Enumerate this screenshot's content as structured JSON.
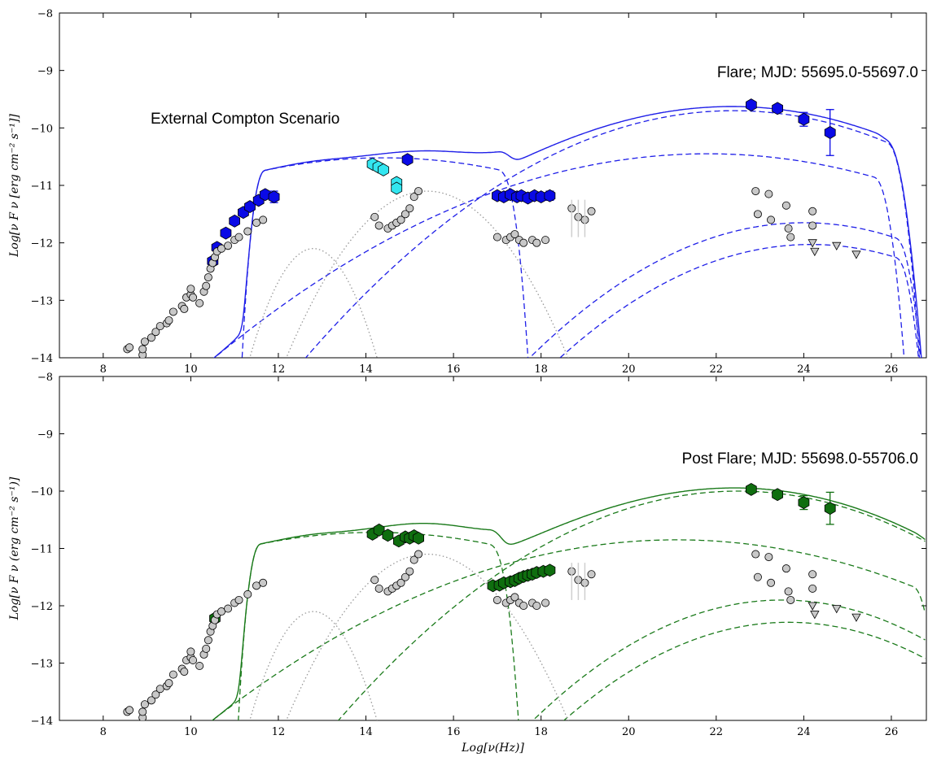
{
  "chart_data": [
    {
      "type": "scatter",
      "panel": "top",
      "annotations": [
        "Flare; MJD: 55695.0-55697.0",
        "External Compton Scenario"
      ],
      "ylabel": "Log[ν F ν [erg cm⁻² s⁻¹]]",
      "xlabel": "",
      "xlim": [
        7,
        26.8
      ],
      "ylim": [
        -14,
        -8
      ],
      "x_ticks": [
        8,
        10,
        12,
        14,
        16,
        18,
        20,
        22,
        24,
        26
      ],
      "y_ticks": [
        -14,
        -13,
        -12,
        -11,
        -10,
        -9,
        -8
      ],
      "colors": {
        "model": "#1f1fe8",
        "points": "#0a0ae6",
        "optical": "#33e6f0",
        "archival": "#c8c8c8",
        "thermal": "#999999"
      },
      "series": [
        {
          "marker": "hexagon",
          "color": "#0a0ae6",
          "x": [
            10.5,
            10.6,
            10.8,
            11.0,
            11.2,
            11.35,
            11.55,
            11.7,
            11.9,
            14.95,
            17.0,
            17.15,
            17.3,
            17.45,
            17.55,
            17.7,
            17.85,
            18.0,
            18.2,
            22.8,
            23.4,
            24.0,
            24.6
          ],
          "y": [
            -12.32,
            -12.08,
            -11.83,
            -11.62,
            -11.47,
            -11.37,
            -11.26,
            -11.16,
            -11.2,
            -10.55,
            -11.18,
            -11.2,
            -11.16,
            -11.2,
            -11.18,
            -11.22,
            -11.18,
            -11.2,
            -11.18,
            -9.6,
            -9.66,
            -9.85,
            -10.08
          ],
          "yerr": [
            0.05,
            0.04,
            0.04,
            0.04,
            0.04,
            0.04,
            0.04,
            0.05,
            0.1,
            0.03,
            0.05,
            0.05,
            0.05,
            0.05,
            0.05,
            0.05,
            0.05,
            0.05,
            0.08,
            0.03,
            0.05,
            0.12,
            0.4
          ]
        },
        {
          "marker": "hexagon",
          "color": "#33e6f0",
          "x": [
            14.15,
            14.28,
            14.4,
            14.7,
            14.7
          ],
          "y": [
            -10.63,
            -10.68,
            -10.73,
            -10.95,
            -11.05
          ]
        },
        {
          "marker": "circle",
          "color": "#c8c8c8",
          "x": [
            8.55,
            8.6,
            8.9,
            8.9,
            8.95,
            9.1,
            9.2,
            9.3,
            9.45,
            9.5,
            9.6,
            9.8,
            9.85,
            9.9,
            10.0,
            10.0,
            10.05,
            10.2,
            10.3,
            10.35,
            10.4,
            10.45,
            10.5,
            10.55,
            10.6,
            10.7,
            10.85,
            11.0,
            11.1,
            11.3,
            11.5,
            11.65,
            14.2,
            14.3,
            14.5,
            14.6,
            14.7,
            14.8,
            14.9,
            15.0,
            15.1,
            15.2,
            17.0,
            17.2,
            17.3,
            17.4,
            17.5,
            17.6,
            17.8,
            17.9,
            18.1,
            18.7,
            18.85,
            19.0,
            19.15,
            22.9,
            22.95,
            23.2,
            23.25,
            23.6,
            23.65,
            23.7,
            24.2,
            24.2
          ],
          "y": [
            -13.85,
            -13.82,
            -13.95,
            -13.85,
            -13.72,
            -13.65,
            -13.55,
            -13.45,
            -13.4,
            -13.35,
            -13.2,
            -13.1,
            -13.15,
            -12.95,
            -12.9,
            -12.8,
            -12.95,
            -13.05,
            -12.85,
            -12.75,
            -12.6,
            -12.45,
            -12.35,
            -12.25,
            -12.15,
            -12.1,
            -12.05,
            -11.95,
            -11.9,
            -11.8,
            -11.65,
            -11.6,
            -11.55,
            -11.7,
            -11.75,
            -11.7,
            -11.65,
            -11.6,
            -11.5,
            -11.4,
            -11.2,
            -11.1,
            -11.9,
            -11.95,
            -11.9,
            -11.85,
            -11.95,
            -12.0,
            -11.95,
            -12.0,
            -11.95,
            -11.4,
            -11.55,
            -11.6,
            -11.45,
            -11.1,
            -11.5,
            -11.15,
            -11.6,
            -11.35,
            -11.75,
            -11.9,
            -11.45,
            -11.7
          ],
          "yerr_flags": "points near x 18.8-19.1 carry light grey error bars"
        },
        {
          "marker": "triangle-down",
          "color": "#c8c8c8",
          "x": [
            24.2,
            24.25,
            24.75,
            25.2
          ],
          "y": [
            -12.0,
            -12.15,
            -12.05,
            -12.2
          ]
        }
      ],
      "curves": [
        {
          "style": "solid",
          "color": "#1f1fe8",
          "role": "total model"
        },
        {
          "style": "dashed",
          "color": "#1f1fe8",
          "role": "synchrotron"
        },
        {
          "style": "dashed",
          "color": "#1f1fe8",
          "role": "SSC"
        },
        {
          "style": "dashed",
          "color": "#1f1fe8",
          "role": "EC disk"
        },
        {
          "style": "dashed",
          "color": "#1f1fe8",
          "role": "EC BLR"
        },
        {
          "style": "dashed",
          "color": "#1f1fe8",
          "role": "EC torus"
        },
        {
          "style": "dotted",
          "color": "#999999",
          "role": "torus"
        },
        {
          "style": "dotted",
          "color": "#999999",
          "role": "disk"
        }
      ]
    },
    {
      "type": "scatter",
      "panel": "bottom",
      "annotations": [
        "Post Flare; MJD: 55698.0-55706.0"
      ],
      "ylabel": "Log[ν F ν (erg cm⁻² s⁻¹)]",
      "xlabel": "Log[ν(Hz)]",
      "xlim": [
        7,
        26.8
      ],
      "ylim": [
        -14,
        -8
      ],
      "x_ticks": [
        8,
        10,
        12,
        14,
        16,
        18,
        20,
        22,
        24,
        26
      ],
      "y_ticks": [
        -14,
        -13,
        -12,
        -11,
        -10,
        -9,
        -8
      ],
      "colors": {
        "model": "#1a7a1a",
        "points": "#0f6e0f",
        "archival": "#c8c8c8",
        "thermal": "#999999"
      },
      "series": [
        {
          "marker": "hexagon",
          "color": "#0f6e0f",
          "x": [
            10.55,
            14.15,
            14.3,
            14.5,
            14.75,
            14.9,
            15.0,
            15.1,
            15.2,
            16.9,
            17.05,
            17.15,
            17.3,
            17.4,
            17.5,
            17.6,
            17.7,
            17.8,
            17.9,
            18.05,
            18.2,
            22.8,
            23.4,
            24.0,
            24.6
          ],
          "y": [
            -12.22,
            -10.75,
            -10.68,
            -10.77,
            -10.87,
            -10.8,
            -10.82,
            -10.78,
            -10.82,
            -11.65,
            -11.64,
            -11.6,
            -11.58,
            -11.56,
            -11.52,
            -11.49,
            -11.47,
            -11.45,
            -11.42,
            -11.4,
            -11.38,
            -9.97,
            -10.06,
            -10.2,
            -10.3
          ],
          "yerr": [
            0.05,
            0.03,
            0.03,
            0.03,
            0.03,
            0.03,
            0.03,
            0.03,
            0.03,
            0.04,
            0.04,
            0.04,
            0.04,
            0.04,
            0.04,
            0.04,
            0.04,
            0.04,
            0.04,
            0.04,
            0.05,
            0.03,
            0.05,
            0.12,
            0.28
          ]
        },
        {
          "marker": "circle",
          "color": "#c8c8c8",
          "x": [
            8.55,
            8.6,
            8.9,
            8.9,
            8.95,
            9.1,
            9.2,
            9.3,
            9.45,
            9.5,
            9.6,
            9.8,
            9.85,
            9.9,
            10.0,
            10.0,
            10.05,
            10.2,
            10.3,
            10.35,
            10.4,
            10.45,
            10.5,
            10.55,
            10.6,
            10.7,
            10.85,
            11.0,
            11.1,
            11.3,
            11.5,
            11.65,
            14.2,
            14.3,
            14.5,
            14.6,
            14.7,
            14.8,
            14.9,
            15.0,
            15.1,
            15.2,
            17.0,
            17.2,
            17.3,
            17.4,
            17.5,
            17.6,
            17.8,
            17.9,
            18.1,
            18.7,
            18.85,
            19.0,
            19.15,
            22.9,
            22.95,
            23.2,
            23.25,
            23.6,
            23.65,
            23.7,
            24.2,
            24.2
          ],
          "y": [
            -13.85,
            -13.82,
            -13.95,
            -13.85,
            -13.72,
            -13.65,
            -13.55,
            -13.45,
            -13.4,
            -13.35,
            -13.2,
            -13.1,
            -13.15,
            -12.95,
            -12.9,
            -12.8,
            -12.95,
            -13.05,
            -12.85,
            -12.75,
            -12.6,
            -12.45,
            -12.35,
            -12.25,
            -12.15,
            -12.1,
            -12.05,
            -11.95,
            -11.9,
            -11.8,
            -11.65,
            -11.6,
            -11.55,
            -11.7,
            -11.75,
            -11.7,
            -11.65,
            -11.6,
            -11.5,
            -11.4,
            -11.2,
            -11.1,
            -11.9,
            -11.95,
            -11.9,
            -11.85,
            -11.95,
            -12.0,
            -11.95,
            -12.0,
            -11.95,
            -11.4,
            -11.55,
            -11.6,
            -11.45,
            -11.1,
            -11.5,
            -11.15,
            -11.6,
            -11.35,
            -11.75,
            -11.9,
            -11.45,
            -11.7
          ]
        },
        {
          "marker": "triangle-down",
          "color": "#c8c8c8",
          "x": [
            24.2,
            24.25,
            24.75,
            25.2
          ],
          "y": [
            -12.0,
            -12.15,
            -12.05,
            -12.2
          ]
        }
      ],
      "curves": [
        {
          "style": "solid",
          "color": "#1a7a1a",
          "role": "total model"
        },
        {
          "style": "dashed",
          "color": "#1a7a1a",
          "role": "synchrotron"
        },
        {
          "style": "dashed",
          "color": "#1a7a1a",
          "role": "SSC"
        },
        {
          "style": "dashed",
          "color": "#1a7a1a",
          "role": "EC disk"
        },
        {
          "style": "dashed",
          "color": "#1a7a1a",
          "role": "EC BLR"
        },
        {
          "style": "dashed",
          "color": "#1a7a1a",
          "role": "EC torus"
        },
        {
          "style": "dotted",
          "color": "#999999",
          "role": "torus"
        },
        {
          "style": "dotted",
          "color": "#999999",
          "role": "disk"
        }
      ]
    }
  ]
}
